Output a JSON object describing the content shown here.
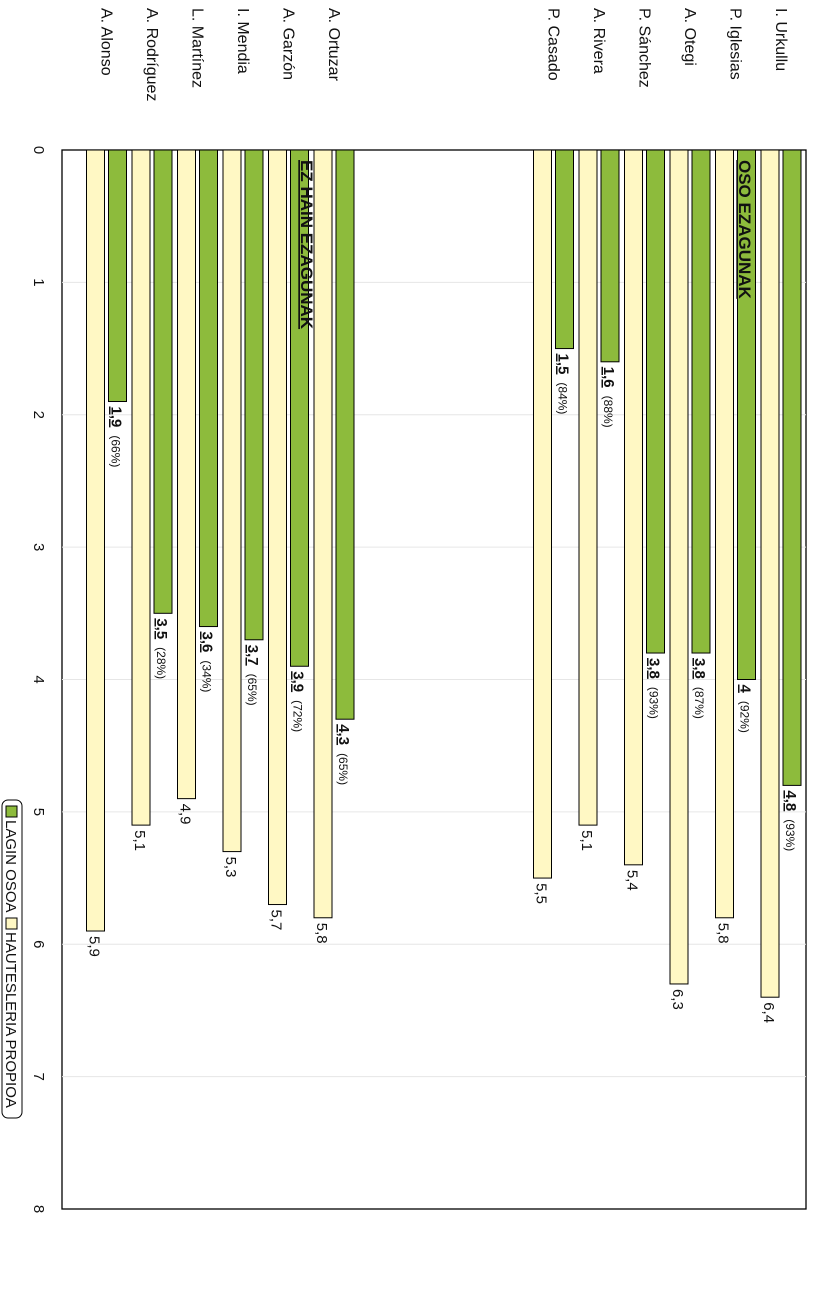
{
  "chart_data": {
    "type": "bar",
    "orientation": "horizontal",
    "rotated": "90deg-clockwise-page",
    "xlim": [
      0,
      8
    ],
    "ticks": [
      "0",
      "1",
      "2",
      "3",
      "4",
      "5",
      "6",
      "7",
      "8"
    ],
    "grid": true,
    "legend": {
      "placement": "bottom",
      "entries": [
        {
          "label": "LAGIN OSOA",
          "color": "#8dbb3c"
        },
        {
          "label": "HAUTESLERIA PROPIOA",
          "color": "#fff8c4"
        }
      ]
    },
    "groups": [
      {
        "title": "OSO EZAGUNAK",
        "items": [
          {
            "name": "I. Urkullu",
            "lagin": 4.8,
            "lagin_label": "4,8",
            "pct": "(93%)",
            "hautesleria": 6.4,
            "hautesleria_label": "6,4"
          },
          {
            "name": "P. Iglesias",
            "lagin": 4.0,
            "lagin_label": "4",
            "pct": "(92%)",
            "hautesleria": 5.8,
            "hautesleria_label": "5,8"
          },
          {
            "name": "A. Otegi",
            "lagin": 3.8,
            "lagin_label": "3,8",
            "pct": "(87%)",
            "hautesleria": 6.3,
            "hautesleria_label": "6,3"
          },
          {
            "name": "P. Sánchez",
            "lagin": 3.8,
            "lagin_label": "3,8",
            "pct": "(93%)",
            "hautesleria": 5.4,
            "hautesleria_label": "5,4"
          },
          {
            "name": "A. Rivera",
            "lagin": 1.6,
            "lagin_label": "1,6",
            "pct": "(88%)",
            "hautesleria": 5.1,
            "hautesleria_label": "5,1"
          },
          {
            "name": "P. Casado",
            "lagin": 1.5,
            "lagin_label": "1,5",
            "pct": "(84%)",
            "hautesleria": 5.5,
            "hautesleria_label": "5,5"
          }
        ]
      },
      {
        "title": "EZ HAIN EZAGUNAK",
        "items": [
          {
            "name": "A. Ortuzar",
            "lagin": 4.3,
            "lagin_label": "4,3",
            "pct": "(65%)",
            "hautesleria": 5.8,
            "hautesleria_label": "5,8"
          },
          {
            "name": "A. Garzón",
            "lagin": 3.9,
            "lagin_label": "3,9",
            "pct": "(72%)",
            "hautesleria": 5.7,
            "hautesleria_label": "5,7"
          },
          {
            "name": "I. Mendia",
            "lagin": 3.7,
            "lagin_label": "3,7",
            "pct": "(65%)",
            "hautesleria": 5.3,
            "hautesleria_label": "5,3"
          },
          {
            "name": "L. Martínez",
            "lagin": 3.6,
            "lagin_label": "3,6",
            "pct": "(34%)",
            "hautesleria": 4.9,
            "hautesleria_label": "4,9"
          },
          {
            "name": "A. Rodríguez",
            "lagin": 3.5,
            "lagin_label": "3,5",
            "pct": "(28%)",
            "hautesleria": 5.1,
            "hautesleria_label": "5,1"
          },
          {
            "name": "A. Alonso",
            "lagin": 1.9,
            "lagin_label": "1,9",
            "pct": "(66%)",
            "hautesleria": 5.9,
            "hautesleria_label": "5,9"
          }
        ]
      }
    ]
  }
}
